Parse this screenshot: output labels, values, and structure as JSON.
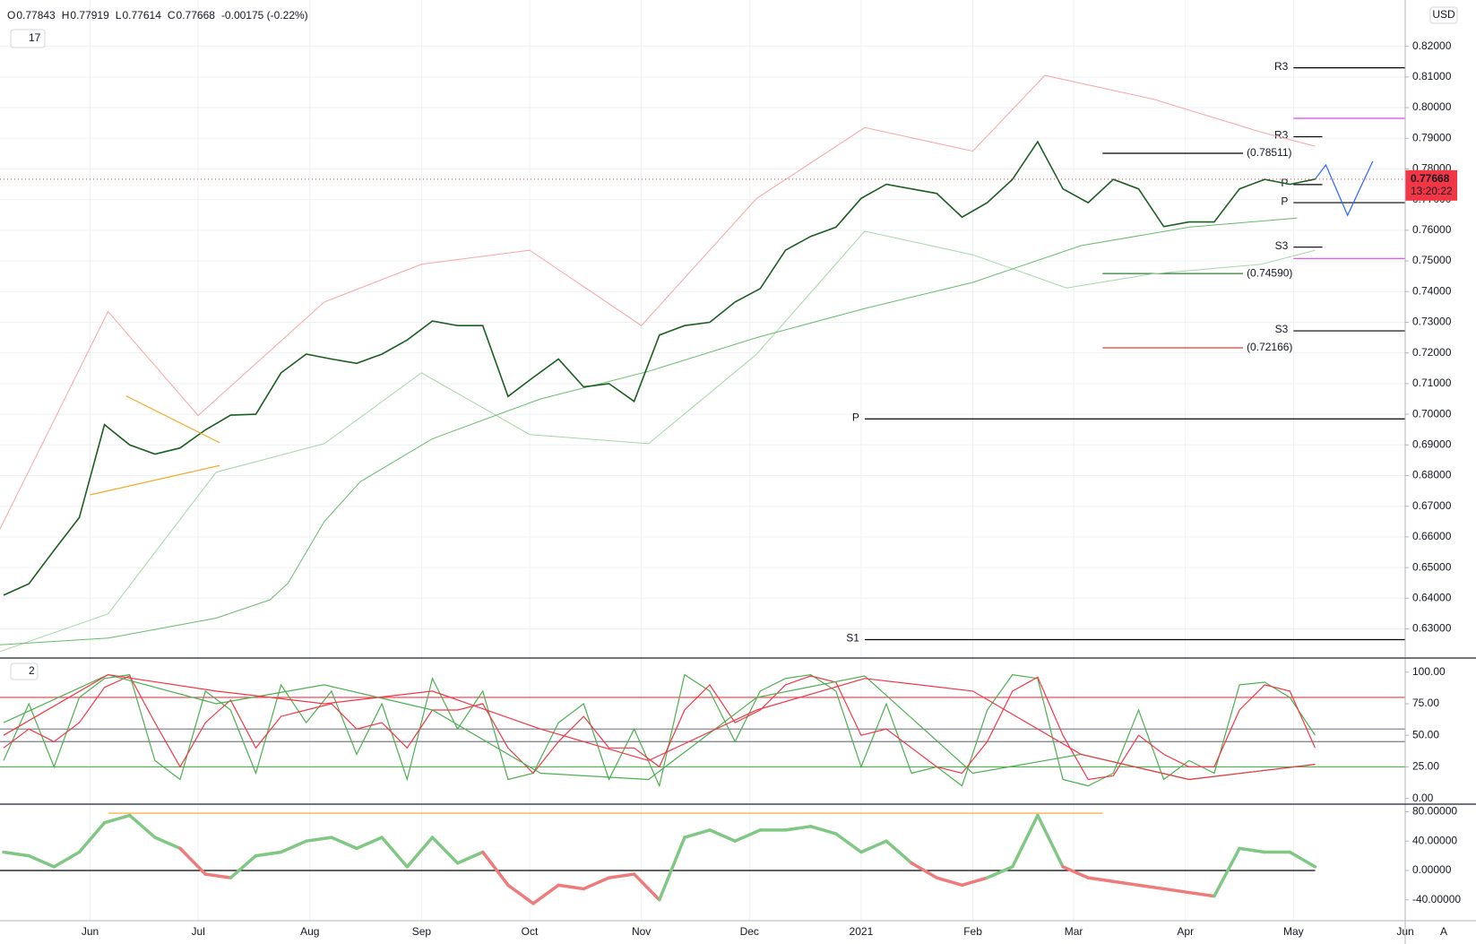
{
  "chart_data": [
    {
      "type": "line",
      "interval": "17",
      "currency": "USD",
      "scale_mode": "A",
      "ohlc": [
        {
          "k": "O",
          "v": "0.77843"
        },
        {
          "k": "H",
          "v": "0.77919"
        },
        {
          "k": "L",
          "v": "0.77614"
        },
        {
          "k": "C",
          "v": "0.77668"
        }
      ],
      "change": "-0.00175 (-0.22%)",
      "last": {
        "value": 0.77668,
        "label": "0.77668",
        "timer": "13:20:22",
        "color": "#f23645"
      },
      "xlim": [
        0,
        390
      ],
      "xticks": [
        {
          "value": 25,
          "label": "Jun"
        },
        {
          "value": 55,
          "label": "Jul"
        },
        {
          "value": 86,
          "label": "Aug"
        },
        {
          "value": 117,
          "label": "Sep"
        },
        {
          "value": 147,
          "label": "Oct"
        },
        {
          "value": 178,
          "label": "Nov"
        },
        {
          "value": 208,
          "label": "Dec"
        },
        {
          "value": 239,
          "label": "2021"
        },
        {
          "value": 270,
          "label": "Feb"
        },
        {
          "value": 298,
          "label": "Mar"
        },
        {
          "value": 329,
          "label": "Apr"
        },
        {
          "value": 359,
          "label": "May"
        },
        {
          "value": 390,
          "label": "Jun"
        }
      ],
      "ylim": [
        0.6205,
        0.8351
      ],
      "yticks": [
        {
          "value": 0.63,
          "label": "0.63000"
        },
        {
          "value": 0.64,
          "label": "0.64000"
        },
        {
          "value": 0.65,
          "label": "0.65000"
        },
        {
          "value": 0.66,
          "label": "0.66000"
        },
        {
          "value": 0.67,
          "label": "0.67000"
        },
        {
          "value": 0.68,
          "label": "0.68000"
        },
        {
          "value": 0.69,
          "label": "0.69000"
        },
        {
          "value": 0.7,
          "label": "0.70000"
        },
        {
          "value": 0.71,
          "label": "0.71000"
        },
        {
          "value": 0.72,
          "label": "0.72000"
        },
        {
          "value": 0.73,
          "label": "0.73000"
        },
        {
          "value": 0.74,
          "label": "0.74000"
        },
        {
          "value": 0.75,
          "label": "0.75000"
        },
        {
          "value": 0.76,
          "label": "0.76000"
        },
        {
          "value": 0.77,
          "label": "0.77000"
        },
        {
          "value": 0.78,
          "label": "0.78000"
        },
        {
          "value": 0.79,
          "label": "0.79000"
        },
        {
          "value": 0.8,
          "label": "0.80000"
        },
        {
          "value": 0.81,
          "label": "0.81000"
        },
        {
          "value": 0.82,
          "label": "0.82000"
        }
      ],
      "grid": true,
      "series": [
        {
          "color": "#f7a5a5",
          "width": 1,
          "x": [
            0,
            30,
            55,
            90,
            117,
            147,
            178,
            210,
            240,
            270,
            290,
            320,
            350,
            365
          ],
          "values": [
            0.6626,
            0.7335,
            0.6996,
            0.7366,
            0.7489,
            0.7535,
            0.7289,
            0.7704,
            0.7935,
            0.7858,
            0.8105,
            0.8028,
            0.792,
            0.7874
          ]
        },
        {
          "color": "#a5d6a7",
          "width": 1,
          "x": [
            0,
            30,
            60,
            90,
            117,
            147,
            180,
            210,
            240,
            270,
            296,
            320,
            350,
            365
          ],
          "values": [
            0.6226,
            0.6349,
            0.6811,
            0.6904,
            0.7135,
            0.6934,
            0.6904,
            0.7196,
            0.7597,
            0.752,
            0.7412,
            0.7458,
            0.7489,
            0.7535
          ]
        },
        {
          "color": "#66bb6a",
          "width": 1,
          "x": [
            0,
            30,
            60,
            75,
            80,
            90,
            100,
            120,
            150,
            180,
            210,
            240,
            270,
            300,
            330,
            360
          ],
          "values": [
            0.6248,
            0.627,
            0.6335,
            0.6395,
            0.645,
            0.665,
            0.678,
            0.692,
            0.705,
            0.714,
            0.725,
            0.7345,
            0.743,
            0.755,
            0.761,
            0.764
          ]
        },
        {
          "color": "#1b5e20",
          "width": 1.6,
          "x": [
            1,
            8,
            15,
            22,
            29,
            36,
            43,
            50,
            57,
            64,
            71,
            78,
            85,
            92,
            99,
            106,
            113,
            120,
            127,
            134,
            141,
            148,
            155,
            162,
            169,
            176,
            183,
            190,
            197,
            204,
            211,
            218,
            225,
            232,
            239,
            246,
            253,
            260,
            267,
            274,
            281,
            288,
            295,
            302,
            309,
            316,
            323,
            330,
            337,
            344,
            351,
            358,
            365
          ],
          "values": [
            0.641,
            0.6447,
            0.6556,
            0.6663,
            0.6966,
            0.69,
            0.687,
            0.689,
            0.6949,
            0.6997,
            0.7,
            0.7135,
            0.7196,
            0.718,
            0.7166,
            0.7196,
            0.7242,
            0.7304,
            0.7289,
            0.7289,
            0.7058,
            0.712,
            0.718,
            0.7089,
            0.71,
            0.7042,
            0.7258,
            0.7289,
            0.73,
            0.7366,
            0.741,
            0.7535,
            0.758,
            0.761,
            0.7704,
            0.775,
            0.7735,
            0.772,
            0.7643,
            0.769,
            0.7766,
            0.7889,
            0.7735,
            0.769,
            0.7766,
            0.7735,
            0.7612,
            0.7627,
            0.7627,
            0.7735,
            0.7766,
            0.775,
            0.77668
          ]
        }
      ],
      "trendlines": [
        {
          "color": "#f5a623",
          "x": [
            25,
            61
          ],
          "values": [
            0.6737,
            0.6833
          ]
        },
        {
          "color": "#f5a623",
          "x": [
            35,
            61
          ],
          "values": [
            0.706,
            0.6907
          ]
        },
        {
          "color": "#2962ff",
          "x": [
            365,
            368,
            374,
            381
          ],
          "values": [
            0.77668,
            0.7813,
            0.7649,
            0.7825
          ]
        }
      ],
      "levels": [
        {
          "label": "R3",
          "value": 0.813,
          "start": 359,
          "end": 390,
          "color": "#000000"
        },
        {
          "label": "R3",
          "value": 0.7905,
          "start": 359,
          "end": 367,
          "color": "#000000"
        },
        {
          "value": 0.7965,
          "start": 359,
          "end": 390,
          "color": "#e040fb"
        },
        {
          "label": "(0.78511)",
          "value": 0.78511,
          "start": 306,
          "end": 345,
          "color": "#000000"
        },
        {
          "label": "P",
          "value": 0.7749,
          "start": 359,
          "end": 367,
          "color": "#000000"
        },
        {
          "label": "P",
          "value": 0.769,
          "start": 359,
          "end": 390,
          "color": "#000000"
        },
        {
          "label": "S3",
          "value": 0.7545,
          "start": 359,
          "end": 367,
          "color": "#000000"
        },
        {
          "value": 0.7508,
          "start": 359,
          "end": 390,
          "color": "#e040fb"
        },
        {
          "label": "(0.74590)",
          "value": 0.7459,
          "start": 306,
          "end": 345,
          "color": "#2e7d32"
        },
        {
          "label": "S3",
          "value": 0.7272,
          "start": 359,
          "end": 390,
          "color": "#000000"
        },
        {
          "label": "(0.72166)",
          "value": 0.72166,
          "start": 306,
          "end": 345,
          "color": "#e53935"
        },
        {
          "label": "P",
          "value": 0.6985,
          "start": 240,
          "end": 390,
          "color": "#000000"
        },
        {
          "label": "S1",
          "value": 0.6265,
          "start": 240,
          "end": 390,
          "color": "#000000"
        }
      ]
    },
    {
      "type": "line",
      "pane_label": "2",
      "ylim": [
        -4.5,
        111.2
      ],
      "yticks": [
        {
          "value": 0,
          "label": "0.00"
        },
        {
          "value": 25,
          "label": "25.00"
        },
        {
          "value": 50,
          "label": "50.00"
        },
        {
          "value": 75,
          "label": "75.00"
        },
        {
          "value": 100,
          "label": "100.00"
        }
      ],
      "levels": [
        {
          "value": 80,
          "color": "#f23645"
        },
        {
          "value": 25,
          "color": "#4caf50"
        },
        {
          "value": 55,
          "color": "#787b86"
        },
        {
          "value": 45,
          "color": "#787b86"
        }
      ],
      "series": [
        {
          "color": "#4caf50",
          "x": [
            1,
            8,
            15,
            22,
            29,
            36,
            43,
            50,
            57,
            64,
            71,
            78,
            85,
            92,
            99,
            106,
            113,
            120,
            127,
            134,
            141,
            148,
            155,
            162,
            169,
            176,
            183,
            190,
            197,
            204,
            211,
            218,
            225,
            232,
            239,
            246,
            253,
            260,
            267,
            274,
            281,
            288,
            295,
            302,
            309,
            316,
            323,
            330,
            337,
            344,
            351,
            358,
            365
          ],
          "values": [
            30,
            75,
            25,
            80,
            95,
            98,
            30,
            15,
            85,
            70,
            20,
            90,
            60,
            85,
            35,
            75,
            15,
            95,
            55,
            85,
            15,
            20,
            60,
            75,
            15,
            55,
            10,
            98,
            85,
            45,
            85,
            95,
            98,
            85,
            25,
            75,
            20,
            25,
            10,
            70,
            98,
            95,
            15,
            10,
            20,
            70,
            15,
            30,
            20,
            90,
            92,
            80,
            50
          ]
        },
        {
          "color": "#f23645",
          "x": [
            1,
            8,
            15,
            22,
            29,
            36,
            43,
            50,
            57,
            64,
            71,
            78,
            85,
            92,
            99,
            106,
            113,
            120,
            127,
            134,
            141,
            148,
            155,
            162,
            169,
            176,
            183,
            190,
            197,
            204,
            211,
            218,
            225,
            232,
            239,
            246,
            253,
            260,
            267,
            274,
            281,
            288,
            295,
            302,
            309,
            316,
            323,
            330,
            337,
            344,
            351,
            358,
            365
          ],
          "values": [
            40,
            55,
            45,
            60,
            88,
            97,
            60,
            25,
            60,
            78,
            40,
            65,
            70,
            75,
            55,
            60,
            40,
            70,
            70,
            75,
            40,
            20,
            45,
            65,
            40,
            40,
            25,
            70,
            90,
            60,
            70,
            90,
            97,
            92,
            50,
            55,
            40,
            25,
            20,
            45,
            85,
            96,
            50,
            15,
            18,
            50,
            35,
            25,
            25,
            70,
            90,
            85,
            40
          ]
        },
        {
          "color": "#4caf50",
          "x": [
            1,
            30,
            60,
            90,
            120,
            150,
            180,
            210,
            240,
            270,
            300,
            330,
            365
          ],
          "values": [
            60,
            98,
            75,
            90,
            70,
            20,
            15,
            80,
            97,
            20,
            35,
            15,
            27
          ]
        },
        {
          "color": "#f23645",
          "x": [
            1,
            30,
            60,
            90,
            120,
            150,
            180,
            210,
            240,
            270,
            300,
            330,
            365
          ],
          "values": [
            50,
            98,
            85,
            75,
            85,
            55,
            30,
            70,
            95,
            85,
            35,
            15,
            27
          ]
        }
      ]
    },
    {
      "type": "line",
      "ylim": [
        -68.4,
        90.3
      ],
      "yticks": [
        {
          "value": -40,
          "label": "-40.00000"
        },
        {
          "value": 0,
          "label": "0.00000"
        },
        {
          "value": 40,
          "label": "40.00000"
        },
        {
          "value": 80,
          "label": "80.00000"
        }
      ],
      "levels": [
        {
          "value": 0,
          "start": 0,
          "end": 365,
          "color": "#000000"
        },
        {
          "value": 78,
          "start": 30,
          "end": 306,
          "color": "#f5a623"
        }
      ],
      "up_color": "#81c784",
      "down_color": "#ef7a7a",
      "series": [
        {
          "x": [
            1,
            8,
            15,
            22,
            29,
            36,
            43,
            50,
            57,
            64,
            71,
            78,
            85,
            92,
            99,
            106,
            113,
            120,
            127,
            134,
            141,
            148,
            155,
            162,
            169,
            176,
            183,
            190,
            197,
            204,
            211,
            218,
            225,
            232,
            239,
            246,
            253,
            260,
            267,
            274,
            281,
            288,
            295,
            302,
            309,
            316,
            323,
            330,
            337,
            344,
            351,
            358,
            365
          ],
          "values": [
            25,
            20,
            5,
            25,
            65,
            75,
            45,
            30,
            -5,
            -10,
            20,
            25,
            40,
            45,
            30,
            45,
            5,
            45,
            10,
            25,
            -20,
            -45,
            -20,
            -25,
            -10,
            -5,
            -40,
            45,
            55,
            40,
            55,
            55,
            60,
            50,
            25,
            40,
            10,
            -10,
            -20,
            -10,
            5,
            75,
            5,
            -10,
            -15,
            -20,
            -25,
            -30,
            -35,
            30,
            25,
            25,
            5
          ]
        }
      ]
    }
  ]
}
